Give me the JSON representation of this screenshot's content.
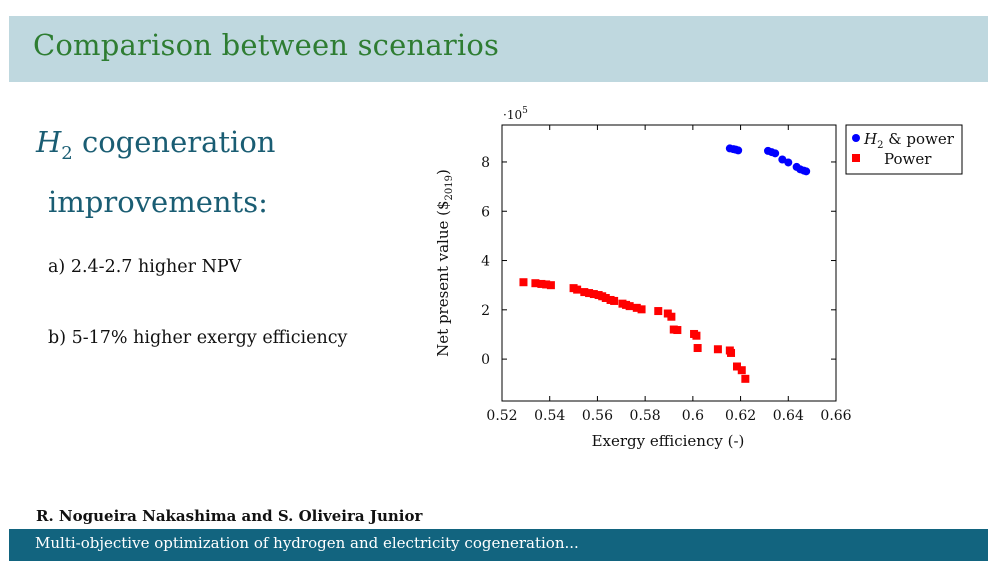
{
  "header": {
    "title": "Comparison between scenarios"
  },
  "left": {
    "heading_symbol": "H",
    "heading_sub": "2",
    "heading_rest": " cogeneration",
    "heading_line2": "improvements:",
    "items": [
      "a) 2.4-2.7 higher NPV",
      "b) 5-17% higher exergy efficiency"
    ]
  },
  "footer": {
    "authors": "R. Nogueira Nakashima and S. Oliveira Junior",
    "subtitle": "Multi-objective optimization of hydrogen and electricity cogeneration..."
  },
  "chart_data": {
    "type": "scatter",
    "xlabel": "Exergy efficiency (-)",
    "ylabel": "Net present value ($2019)",
    "ylabel_main": "Net present value ($",
    "ylabel_sub": "2019",
    "ylabel_end": ")",
    "y_multiplier": "·10",
    "y_multiplier_exp": "5",
    "xlim": [
      0.52,
      0.66
    ],
    "ylim": [
      -1.7,
      9.5
    ],
    "xticks": [
      "0.52",
      "0.54",
      "0.56",
      "0.58",
      "0.6",
      "0.62",
      "0.64",
      "0.66"
    ],
    "xtick_values": [
      0.52,
      0.54,
      0.56,
      0.58,
      0.6,
      0.62,
      0.64,
      0.66
    ],
    "yticks": [
      "0",
      "2",
      "4",
      "6",
      "8"
    ],
    "ytick_values": [
      0,
      2,
      4,
      6,
      8
    ],
    "legend_position": "top-right",
    "series": [
      {
        "name": "H2 & power",
        "legend_sym": "H",
        "legend_sub": "2",
        "legend_rest": " & power",
        "marker": "circle",
        "color": "#0000ff",
        "points": [
          [
            0.6155,
            8.55
          ],
          [
            0.617,
            8.52
          ],
          [
            0.618,
            8.5
          ],
          [
            0.619,
            8.47
          ],
          [
            0.6315,
            8.45
          ],
          [
            0.633,
            8.4
          ],
          [
            0.6345,
            8.35
          ],
          [
            0.6375,
            8.1
          ],
          [
            0.64,
            7.98
          ],
          [
            0.6435,
            7.8
          ],
          [
            0.645,
            7.7
          ],
          [
            0.6465,
            7.65
          ],
          [
            0.6475,
            7.62
          ]
        ]
      },
      {
        "name": "Power",
        "marker": "square",
        "color": "#ff0000",
        "points": [
          [
            0.529,
            3.12
          ],
          [
            0.534,
            3.08
          ],
          [
            0.5365,
            3.05
          ],
          [
            0.5385,
            3.03
          ],
          [
            0.5405,
            3.0
          ],
          [
            0.55,
            2.88
          ],
          [
            0.5515,
            2.82
          ],
          [
            0.5545,
            2.72
          ],
          [
            0.5565,
            2.68
          ],
          [
            0.5585,
            2.64
          ],
          [
            0.5605,
            2.6
          ],
          [
            0.562,
            2.55
          ],
          [
            0.5635,
            2.48
          ],
          [
            0.5655,
            2.4
          ],
          [
            0.567,
            2.36
          ],
          [
            0.5705,
            2.25
          ],
          [
            0.572,
            2.2
          ],
          [
            0.5735,
            2.15
          ],
          [
            0.5765,
            2.08
          ],
          [
            0.5785,
            2.02
          ],
          [
            0.5855,
            1.95
          ],
          [
            0.5895,
            1.85
          ],
          [
            0.591,
            1.72
          ],
          [
            0.592,
            1.2
          ],
          [
            0.5935,
            1.18
          ],
          [
            0.6005,
            1.02
          ],
          [
            0.6015,
            0.95
          ],
          [
            0.602,
            0.45
          ],
          [
            0.6105,
            0.4
          ],
          [
            0.6155,
            0.35
          ],
          [
            0.616,
            0.25
          ],
          [
            0.6185,
            -0.3
          ],
          [
            0.6205,
            -0.45
          ],
          [
            0.622,
            -0.8
          ]
        ]
      }
    ]
  }
}
